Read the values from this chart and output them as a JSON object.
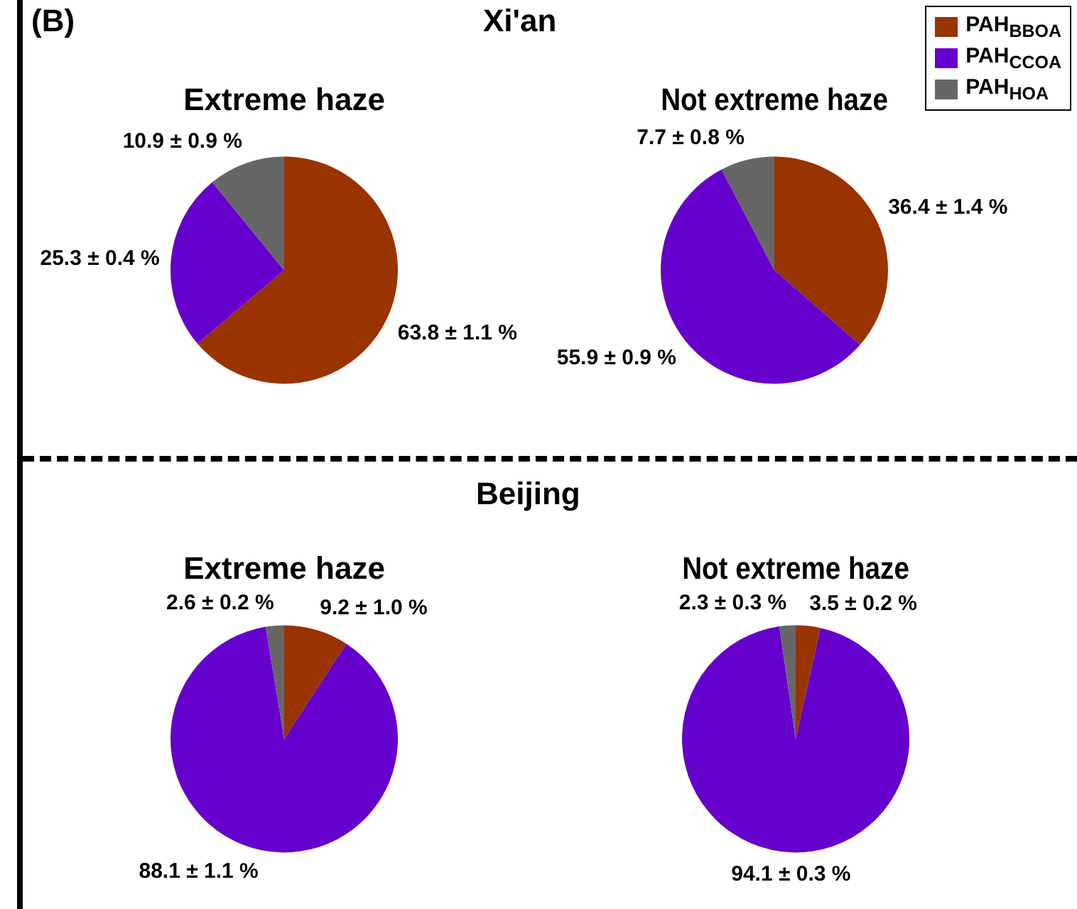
{
  "chart_data": [
    {
      "type": "pie",
      "title": "Extreme haze",
      "annotations": [
        "(B)",
        "Xi'an"
      ],
      "categories": [
        null,
        null,
        null
      ],
      "values": [
        63.8,
        25.3,
        10.9
      ],
      "colors": [
        "#993300",
        "#6600cc",
        "#666666"
      ],
      "value_labels": [
        "63.8 ± 1.1 %",
        "25.3 ± 0.4 %",
        "10.9 ± 0.9 %"
      ]
    },
    {
      "type": "pie",
      "title": "Not extreme haze",
      "legend": "top right",
      "categories": [
        "PAH$_{BBOA}$",
        "PAH$_{CCOA}$",
        "PAH$_{HOA}$"
      ],
      "values": [
        36.4,
        55.9,
        7.7
      ],
      "colors": [
        "#993300",
        "#6600cc",
        "#666666"
      ],
      "value_labels": [
        "36.4 ± 1.4 %",
        "55.9 ± 0.9 %",
        "7.7 ± 0.8 %"
      ]
    },
    {
      "type": "pie",
      "title": "Extreme haze",
      "annotations": [
        "Beijing"
      ],
      "categories": [
        null,
        null,
        null
      ],
      "values": [
        9.2,
        88.1,
        2.6
      ],
      "colors": [
        "#993300",
        "#6600cc",
        "#666666"
      ],
      "value_labels": [
        "9.2 ± 1.0 %",
        "88.1 ± 1.1 %",
        "2.6 ± 0.2 %"
      ]
    },
    {
      "type": "pie",
      "title": "Not extreme haze",
      "categories": [
        null,
        null,
        null
      ],
      "values": [
        3.5,
        94.1,
        2.3
      ],
      "colors": [
        "#993300",
        "#6600cc",
        "#666666"
      ],
      "value_labels": [
        "3.5 ± 0.2 %",
        "94.1 ± 0.3 %",
        "2.3 ± 0.3 %"
      ]
    }
  ]
}
